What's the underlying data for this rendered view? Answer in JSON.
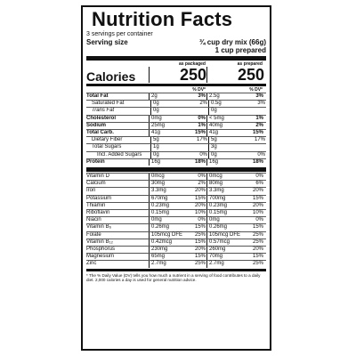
{
  "title": "Nutrition Facts",
  "servings_line": "3 servings per container",
  "serving_size_label": "Serving size",
  "serving_size_value1": "¾ cup dry mix (66g)",
  "serving_size_value2": "1 cup prepared",
  "col_packaged": "as packaged",
  "col_prepared": "as prepared",
  "calories_label": "Calories",
  "calories_packaged": "250",
  "calories_prepared": "250",
  "dv_header": "% DV*",
  "rows": [
    {
      "name": "Total Fat",
      "a1": "2g",
      "d1": "3%",
      "a2": "2.5g",
      "d2": "3%",
      "style": "bold"
    },
    {
      "name": "Saturated Fat",
      "a1": "0g",
      "d1": "2%",
      "a2": "0.5g",
      "d2": "3%",
      "style": "ind1"
    },
    {
      "name": "Trans Fat",
      "a1": "0g",
      "d1": "",
      "a2": "0g",
      "d2": "",
      "style": "ind1 italic"
    },
    {
      "name": "Cholesterol",
      "a1": "0mg",
      "d1": "0%",
      "a2": "< 5mg",
      "d2": "1%",
      "style": "bold"
    },
    {
      "name": "Sodium",
      "a1": "25mg",
      "d1": "1%",
      "a2": "40mg",
      "d2": "2%",
      "style": "bold"
    },
    {
      "name": "Total Carb.",
      "a1": "41g",
      "d1": "15%",
      "a2": "41g",
      "d2": "15%",
      "style": "bold"
    },
    {
      "name": "Dietary Fiber",
      "a1": "5g",
      "d1": "17%",
      "a2": "5g",
      "d2": "17%",
      "style": "ind1"
    },
    {
      "name": "Total Sugars",
      "a1": "1g",
      "d1": "",
      "a2": "3g",
      "d2": "",
      "style": "ind1"
    },
    {
      "name": "Incl. Added Sugars",
      "a1": "0g",
      "d1": "0%",
      "a2": "0g",
      "d2": "0%",
      "style": "ind2"
    },
    {
      "name": "Protein",
      "a1": "16g",
      "d1": "18%",
      "a2": "16g",
      "d2": "18%",
      "style": "bold"
    }
  ],
  "vitamins": [
    {
      "name": "Vitamin D",
      "a1": "0mcg",
      "d1": "0%",
      "a2": "0mcg",
      "d2": "0%"
    },
    {
      "name": "Calcium",
      "a1": "30mg",
      "d1": "2%",
      "a2": "80mg",
      "d2": "6%"
    },
    {
      "name": "Iron",
      "a1": "3.3mg",
      "d1": "20%",
      "a2": "3.3mg",
      "d2": "20%"
    },
    {
      "name": "Potassium",
      "a1": "670mg",
      "d1": "15%",
      "a2": "700mg",
      "d2": "15%"
    },
    {
      "name": "Thiamin",
      "a1": "0.23mg",
      "d1": "20%",
      "a2": "0.23mg",
      "d2": "20%"
    },
    {
      "name": "Riboflavin",
      "a1": "0.15mg",
      "d1": "10%",
      "a2": "0.15mg",
      "d2": "10%"
    },
    {
      "name": "Niacin",
      "a1": "0mg",
      "d1": "0%",
      "a2": "0mg",
      "d2": "0%"
    },
    {
      "name": "Vitamin B₆",
      "a1": "0.26mg",
      "d1": "15%",
      "a2": "0.26mg",
      "d2": "15%"
    },
    {
      "name": "Folate",
      "a1": "105mcg DFE",
      "d1": "25%",
      "a2": "105mcg DFE",
      "d2": "25%"
    },
    {
      "name": "Vitamin B₁₂",
      "a1": "0.42mcg",
      "d1": "15%",
      "a2": "0.57mcg",
      "d2": "25%"
    },
    {
      "name": "Phosphorus",
      "a1": "230mg",
      "d1": "20%",
      "a2": "260mg",
      "d2": "20%"
    },
    {
      "name": "Magnesium",
      "a1": "65mg",
      "d1": "15%",
      "a2": "70mg",
      "d2": "15%"
    },
    {
      "name": "Zinc",
      "a1": "2.7mg",
      "d1": "25%",
      "a2": "2.7mg",
      "d2": "25%"
    }
  ],
  "footnote": "* The % Daily Value (DV) tells you how much a nutrient in a serving of food contributes to a daily diet. 2,000 calories a day is used for general nutrition advice."
}
